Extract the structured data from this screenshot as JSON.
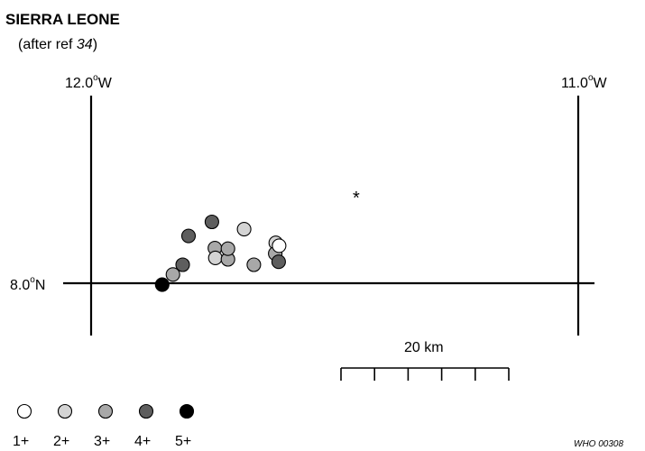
{
  "title": "SIERRA LEONE",
  "subtitle": {
    "prefix": "(after ref ",
    "ref": "34",
    "suffix": ")"
  },
  "longitude_labels": [
    {
      "value": "12.0",
      "deg": "o",
      "dir": "W"
    },
    {
      "value": "11.0",
      "deg": "o",
      "dir": "W"
    }
  ],
  "latitude_label": {
    "value": "8.0",
    "deg": "o",
    "dir": "N"
  },
  "scale_bar": {
    "label": "20 km",
    "divisions": 5
  },
  "marker_note": "*",
  "legend": [
    {
      "label": "1+",
      "level": 1
    },
    {
      "label": "2+",
      "level": 2
    },
    {
      "label": "3+",
      "level": 3
    },
    {
      "label": "4+",
      "level": 4
    },
    {
      "label": "5+",
      "level": 5
    }
  ],
  "level_colors": {
    "1": "#ffffff",
    "2": "#d4d4d4",
    "3": "#a8a8a8",
    "4": "#5e5e5e",
    "5": "#000000"
  },
  "credit": "WHO 00308",
  "sites": [
    {
      "lon": -11.854,
      "lat": 7.997,
      "level": 5
    },
    {
      "lon": -11.752,
      "lat": 8.126,
      "level": 4
    },
    {
      "lon": -11.8,
      "lat": 8.097,
      "level": 4
    },
    {
      "lon": -11.746,
      "lat": 8.072,
      "level": 3
    },
    {
      "lon": -11.745,
      "lat": 8.052,
      "level": 2
    },
    {
      "lon": -11.719,
      "lat": 8.049,
      "level": 3
    },
    {
      "lon": -11.719,
      "lat": 8.071,
      "level": 3
    },
    {
      "lon": -11.686,
      "lat": 8.111,
      "level": 2
    },
    {
      "lon": -11.666,
      "lat": 8.038,
      "level": 3
    },
    {
      "lon": -11.812,
      "lat": 8.038,
      "level": 4
    },
    {
      "lon": -11.832,
      "lat": 8.018,
      "level": 3
    },
    {
      "lon": -11.621,
      "lat": 8.083,
      "level": 2
    },
    {
      "lon": -11.622,
      "lat": 8.061,
      "level": 3
    },
    {
      "lon": -11.615,
      "lat": 8.044,
      "level": 4
    },
    {
      "lon": -11.614,
      "lat": 8.077,
      "level": 1
    }
  ]
}
